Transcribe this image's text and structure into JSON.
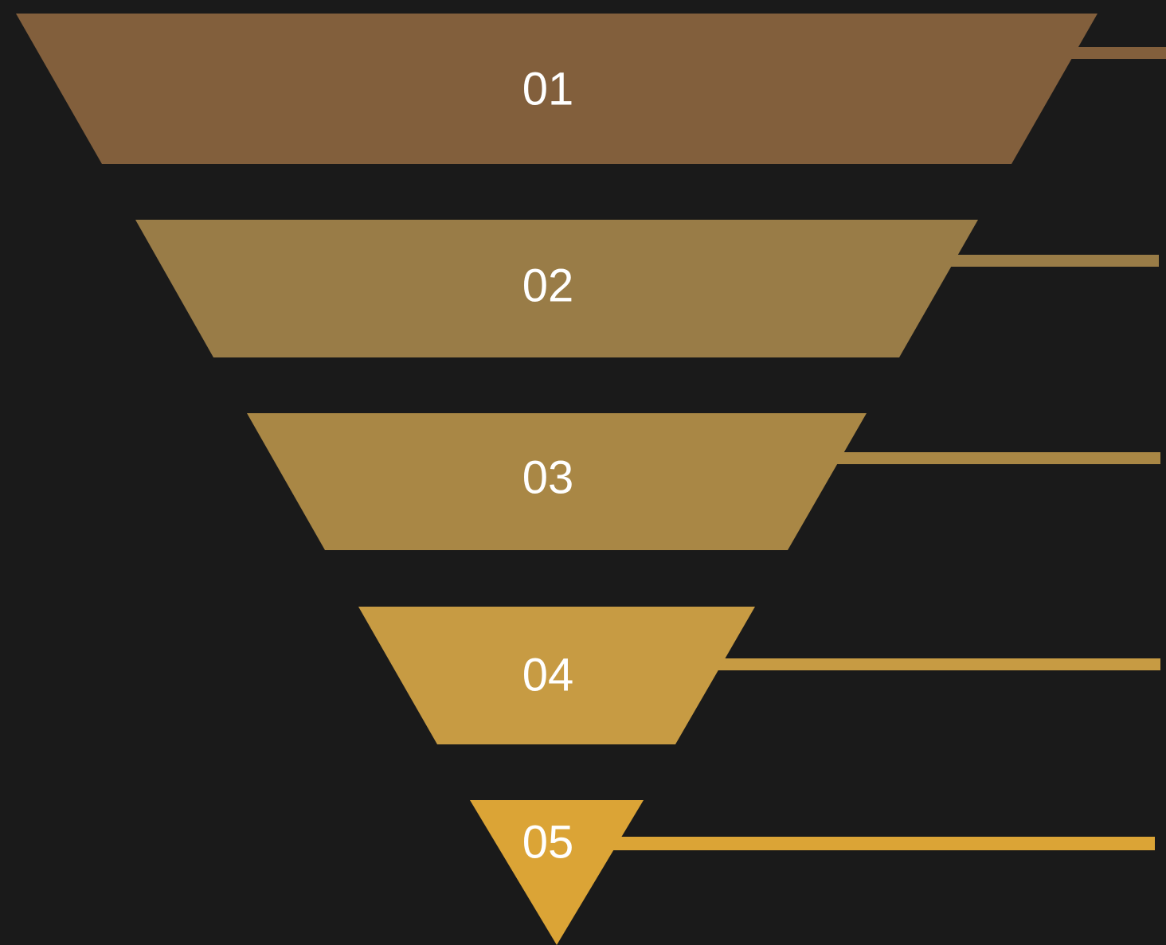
{
  "background_color": "#1a1a1a",
  "funnel": {
    "stages": [
      {
        "label": "01",
        "color": "#825f3c"
      },
      {
        "label": "02",
        "color": "#997c47"
      },
      {
        "label": "03",
        "color": "#a98745"
      },
      {
        "label": "04",
        "color": "#c79b43"
      },
      {
        "label": "05",
        "color": "#dba436"
      }
    ]
  }
}
